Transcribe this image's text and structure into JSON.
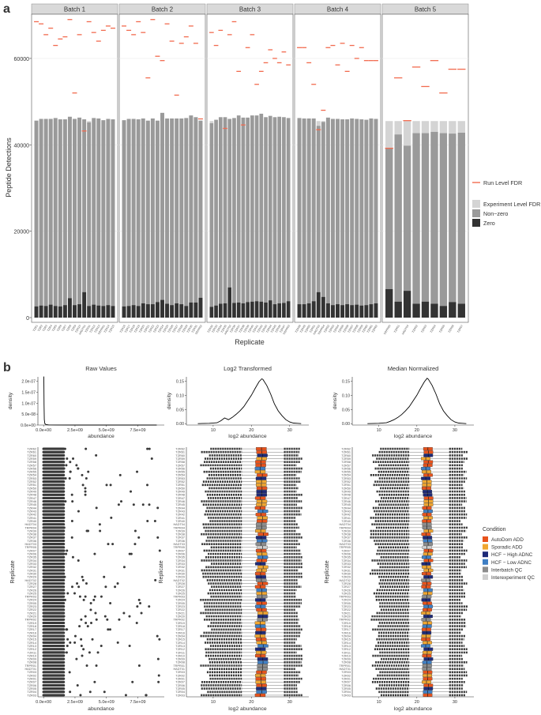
{
  "figure": {
    "panel_a_label": "a",
    "panel_b_label": "b"
  },
  "colors": {
    "zero": "#333333",
    "nonzero": "#9a9a9a",
    "experiment": "#d4d4d4",
    "run_fdr": "#f26b4f",
    "strip_bg": "#d9d9d9",
    "grid": "#ebebeb",
    "point": "#3a3a3a"
  },
  "chart_data": [
    {
      "id": "panel_a",
      "type": "bar",
      "stacked": true,
      "xlabel": "Replicate",
      "ylabel": "Peptide Detections",
      "ylim": [
        0,
        69500
      ],
      "yticks": [
        0,
        20000,
        40000,
        60000
      ],
      "ytick_labels": [
        "0",
        "20000",
        "40000",
        "60000"
      ],
      "experiment_total": 45500,
      "legend": {
        "placement": "right",
        "entries": [
          "Run Level FDR",
          "Experiment Level FDR",
          "Non−zero",
          "Zero"
        ]
      },
      "facets": [
        {
          "strip": "Batch 1",
          "labels": [
            "TZR1",
            "TZR2",
            "TZR3",
            "TZR4",
            "TZR5",
            "TZR6",
            "TZR7",
            "TZR8",
            "TZR9",
            "TZR10",
            "HADT01",
            "TZR11",
            "TZR12",
            "TZR13",
            "TRPR01",
            "TZR14",
            "TZR15"
          ],
          "zero": [
            2600,
            2800,
            2700,
            3000,
            2700,
            2600,
            2900,
            4500,
            2900,
            3100,
            5900,
            2700,
            3000,
            2800,
            2700,
            2900,
            2700
          ],
          "nonzero": [
            43000,
            43200,
            43300,
            43000,
            43500,
            43300,
            43000,
            42000,
            43100,
            43200,
            40000,
            42500,
            43200,
            43300,
            43000,
            43100,
            43200
          ],
          "run_fdr": [
            68500,
            68000,
            65500,
            67000,
            63000,
            64500,
            65000,
            69000,
            52000,
            65500,
            43200,
            68500,
            66000,
            64000,
            66500,
            67500,
            67000
          ]
        },
        {
          "strip": "Batch 2",
          "labels": [
            "TZR16",
            "TZR17",
            "TZR18",
            "TZR19",
            "TZR20",
            "TZR21",
            "TZR22",
            "TZR23",
            "TZR24",
            "TZR25",
            "TZR26",
            "TZR27",
            "TZR28",
            "TZR29",
            "TZR30",
            "TZR31",
            "TRPR02"
          ],
          "zero": [
            2600,
            2700,
            2900,
            2700,
            3300,
            3100,
            3100,
            3600,
            4100,
            3200,
            2900,
            3300,
            3100,
            2700,
            3500,
            3500,
            4600
          ],
          "nonzero": [
            43100,
            43300,
            43100,
            43200,
            42800,
            42500,
            43000,
            42000,
            43300,
            42900,
            43200,
            42800,
            43000,
            43500,
            43300,
            42900,
            41000
          ],
          "run_fdr": [
            67500,
            66500,
            65500,
            68500,
            66000,
            55500,
            69000,
            60500,
            59500,
            68000,
            64000,
            51500,
            63500,
            65000,
            67500,
            63500,
            46000
          ]
        },
        {
          "strip": "Batch 3",
          "labels": [
            "TZR32",
            "TZR33",
            "TZR34",
            "TZR35",
            "HADT02",
            "TZR36",
            "TZR37",
            "TZR38",
            "TZR39",
            "TZR40",
            "TZR41",
            "TZR42",
            "TZR43",
            "TZR44",
            "TZR45",
            "TZR46",
            "TZR47",
            "TRPR03"
          ],
          "zero": [
            2500,
            2800,
            3200,
            3300,
            7000,
            3400,
            3500,
            3300,
            3600,
            3700,
            3800,
            3700,
            3500,
            4000,
            3100,
            3300,
            3400,
            3800
          ],
          "nonzero": [
            42500,
            43000,
            43200,
            43100,
            39000,
            42800,
            43300,
            43000,
            42700,
            43100,
            43000,
            43500,
            42900,
            42700,
            43300,
            43200,
            43000,
            42400
          ],
          "run_fdr": [
            66000,
            63000,
            66500,
            43800,
            65500,
            68500,
            57000,
            44600,
            62500,
            65500,
            54000,
            57000,
            59000,
            62000,
            60000,
            59000,
            61500,
            58500
          ]
        },
        {
          "strip": "Batch 4",
          "labels": [
            "TZR48",
            "TZR49",
            "TZR50",
            "TZR51",
            "HADT03",
            "TRPR04",
            "TZR52",
            "TZR53",
            "TZR54",
            "TZR55",
            "TZR56",
            "TZR57",
            "TZR58",
            "TZR59",
            "TZR60",
            "TZR61",
            "TZR62"
          ],
          "zero": [
            3100,
            3100,
            3300,
            3800,
            5900,
            4800,
            3300,
            2900,
            3100,
            2900,
            3100,
            2900,
            3000,
            2800,
            2900,
            3100,
            3300
          ],
          "nonzero": [
            43100,
            43000,
            42800,
            42300,
            38500,
            40500,
            43000,
            43100,
            42900,
            43000,
            42800,
            43200,
            43000,
            43100,
            42900,
            43000,
            42700
          ],
          "run_fdr": [
            62500,
            62500,
            59000,
            54000,
            43500,
            48000,
            62500,
            63000,
            58500,
            63500,
            57000,
            63000,
            60000,
            62500,
            59500,
            59500,
            59500
          ]
        },
        {
          "strip": "Batch 5",
          "labels": [
            "TRPR05",
            "TZR01",
            "HADT04",
            "TZR02",
            "TZR03",
            "TZR04",
            "TZR05",
            "TZR06",
            "TZR07"
          ],
          "zero": [
            6600,
            3700,
            6200,
            3200,
            3700,
            3200,
            2700,
            3600,
            3200
          ],
          "nonzero": [
            32600,
            38700,
            33600,
            39500,
            39000,
            39800,
            40000,
            39000,
            39600
          ],
          "run_fdr": [
            39200,
            55500,
            45600,
            58000,
            53500,
            59500,
            52000,
            57500,
            57500
          ]
        }
      ]
    },
    {
      "id": "density_raw",
      "type": "line",
      "title": "Raw Values",
      "xlabel": "abundance",
      "ylabel": "density",
      "xlim": [
        -450000000.0,
        9600000000.0
      ],
      "ylim": [
        0,
        2.2e-07
      ],
      "xticks": [
        0,
        2500000000.0,
        5000000000.0,
        7500000000.0
      ],
      "xtick_labels": [
        "0.0e+00",
        "2.5e+09",
        "5.0e+09",
        "7.5e+09"
      ],
      "yticks": [
        0,
        5e-08,
        1e-07,
        1.5e-07,
        2e-07
      ],
      "ytick_labels": [
        "0.0e+00",
        "5.0e-08",
        "1.0e-07",
        "1.5e-07",
        "2.0e-07"
      ],
      "x": [
        0,
        20000000,
        40000000,
        60000000,
        100000000,
        200000000,
        400000000,
        1000000000,
        3000000000,
        9000000000
      ],
      "y": [
        2.2e-07,
        2.2e-07,
        9e-08,
        2.5e-08,
        6e-09,
        2e-09,
        8e-10,
        3e-10,
        0,
        0
      ]
    },
    {
      "id": "density_log2",
      "type": "line",
      "title": "Log2 Transformed",
      "xlabel": "log2 abundance",
      "ylabel": "density",
      "xlim": [
        3,
        35
      ],
      "ylim": [
        -0.005,
        0.165
      ],
      "xticks": [
        10,
        20,
        30
      ],
      "xtick_labels": [
        "10",
        "20",
        "30"
      ],
      "yticks": [
        0,
        0.05,
        0.1,
        0.15
      ],
      "ytick_labels": [
        "0.00",
        "0.05",
        "0.10",
        "0.15"
      ],
      "x": [
        6,
        9,
        11,
        12,
        13,
        14,
        15,
        16,
        17,
        18,
        19,
        20,
        21,
        22,
        22.7,
        23,
        24,
        25,
        26,
        27,
        28,
        29,
        30,
        31,
        32,
        33
      ],
      "y": [
        0,
        0.001,
        0.003,
        0.01,
        0.02,
        0.014,
        0.022,
        0.033,
        0.045,
        0.06,
        0.08,
        0.1,
        0.125,
        0.148,
        0.158,
        0.156,
        0.135,
        0.105,
        0.07,
        0.045,
        0.028,
        0.014,
        0.006,
        0.002,
        0.001,
        0
      ]
    },
    {
      "id": "density_median",
      "type": "line",
      "title": "Median Normalized",
      "xlabel": "log2 abundance",
      "ylabel": "density",
      "xlim": [
        3,
        35
      ],
      "ylim": [
        -0.005,
        0.165
      ],
      "xticks": [
        10,
        20,
        30
      ],
      "xtick_labels": [
        "10",
        "20",
        "30"
      ],
      "yticks": [
        0,
        0.05,
        0.1,
        0.15
      ],
      "ytick_labels": [
        "0.00",
        "0.05",
        "0.10",
        "0.15"
      ],
      "x": [
        7,
        10,
        12,
        13,
        14,
        15,
        16,
        17,
        18,
        19,
        20,
        21,
        22,
        22.7,
        23,
        24,
        25,
        26,
        27,
        28,
        29,
        30,
        31,
        32,
        33
      ],
      "y": [
        0,
        0.001,
        0.003,
        0.008,
        0.014,
        0.022,
        0.032,
        0.045,
        0.06,
        0.08,
        0.1,
        0.125,
        0.148,
        0.16,
        0.157,
        0.135,
        0.105,
        0.07,
        0.045,
        0.028,
        0.014,
        0.006,
        0.002,
        0.001,
        0
      ]
    },
    {
      "id": "box_panels",
      "type": "scatter",
      "ylabel": "Replicate",
      "replicates": [
        "TZR62",
        "TZR61",
        "TZR60",
        "TZR59",
        "TZR58",
        "TZR57",
        "TZR56",
        "TZR55",
        "TZR54",
        "TZR53",
        "TZR52",
        "TZR51",
        "TZR50",
        "TZR49",
        "TZR48",
        "TZR47",
        "TZR46",
        "TZR45",
        "TZR44",
        "TZR43",
        "TZR42",
        "TZR41",
        "TZR40",
        "HADT04",
        "TRPR04",
        "TZR39",
        "TZR38",
        "TZR37",
        "TZR36",
        "HADT03",
        "TRPR05",
        "TZR07",
        "TZR06",
        "TZR35",
        "TZR34",
        "TZR33",
        "TZR32",
        "TZR31",
        "TZR30",
        "TZR29",
        "HADT02",
        "TZR28",
        "TZR27",
        "TZR26",
        "TZR25",
        "TRPR03",
        "TZR24",
        "TZR05",
        "TZR23",
        "TZR22",
        "TZR21",
        "TZR20",
        "TRPR02",
        "TZR19",
        "TZR18",
        "TZR17",
        "TZR16",
        "TZR04",
        "TZR15",
        "TZR14",
        "TZR13",
        "TZR12",
        "TZR11",
        "TZR10",
        "TZR09",
        "TZR08",
        "TRPR01",
        "HADT01",
        "TZR03",
        "TZR02",
        "TZR01",
        "TZR07",
        "TZR06",
        "TZR05",
        "TZR04",
        "TZR03"
      ],
      "conditions": [
        "A",
        "A",
        "C",
        "B",
        "A",
        "A",
        "D",
        "B",
        "A",
        "C",
        "B",
        "B",
        "A",
        "C",
        "C",
        "A",
        "B",
        "B",
        "A",
        "D",
        "A",
        "B",
        "A",
        "E",
        "E",
        "B",
        "A",
        "C",
        "D",
        "E",
        "F",
        "A",
        "B",
        "D",
        "A",
        "C",
        "B",
        "B",
        "A",
        "C",
        "E",
        "A",
        "A",
        "D",
        "B",
        "E",
        "C",
        "A",
        "D",
        "A",
        "B",
        "C",
        "E",
        "B",
        "D",
        "A",
        "C",
        "B",
        "A",
        "B",
        "D",
        "C",
        "B",
        "A",
        "C",
        "D",
        "E",
        "E",
        "A",
        "B",
        "A",
        "B",
        "A",
        "C",
        "D",
        "A"
      ],
      "condition_legend": {
        "title": "Condition",
        "entries": [
          {
            "key": "A",
            "label": "AutoDom ADD",
            "color": "#e8531c"
          },
          {
            "key": "B",
            "label": "Sporadic ADD",
            "color": "#f0a630"
          },
          {
            "key": "C",
            "label": "HCF − High ADNC",
            "color": "#1e2a78"
          },
          {
            "key": "D",
            "label": "HCF − Low ADNC",
            "color": "#3f7fc4"
          },
          {
            "key": "E",
            "label": "Interbatch QC",
            "color": "#8c8c8c"
          },
          {
            "key": "F",
            "label": "Interexperiment QC",
            "color": "#cfcfcf"
          }
        ]
      },
      "panels": [
        {
          "id": "raw",
          "xlabel": "abundance",
          "xlim": [
            -450000000.0,
            9600000000.0
          ],
          "xticks": [
            0,
            2500000000.0,
            5000000000.0,
            7500000000.0
          ],
          "xtick_labels": [
            "0.0e+00",
            "2.5e+09",
            "5.0e+09",
            "7.5e+09"
          ],
          "dense_range": [
            0,
            1600000000.0
          ],
          "outlier_range": [
            1600000000.0,
            9400000000.0
          ]
        },
        {
          "id": "log2",
          "xlabel": "log2 abundance",
          "xlim": [
            3,
            35
          ],
          "xticks": [
            10,
            20,
            30
          ],
          "xtick_labels": [
            "10",
            "20",
            "30"
          ],
          "median": 22.7,
          "q1": 21.3,
          "q3": 24.0,
          "low_out": [
            6.5,
            17.5
          ],
          "high_out": [
            28.5,
            33.5
          ]
        },
        {
          "id": "median",
          "xlabel": "log2 abundance",
          "xlim": [
            3,
            35
          ],
          "xticks": [
            10,
            20,
            30
          ],
          "xtick_labels": [
            "10",
            "20",
            "30"
          ],
          "median": 22.7,
          "q1": 21.5,
          "q3": 23.9,
          "low_out": [
            7.5,
            18
          ],
          "high_out": [
            28.5,
            33.5
          ]
        }
      ]
    }
  ]
}
